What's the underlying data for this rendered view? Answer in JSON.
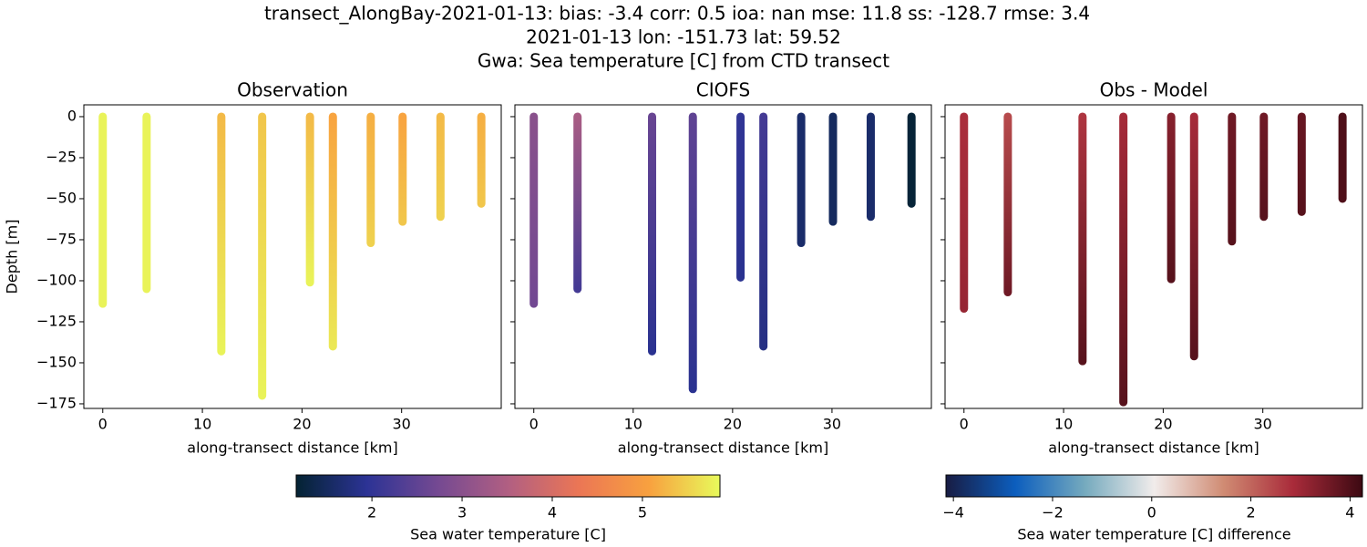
{
  "suptitle": [
    "transect_AlongBay-2021-01-13: bias: -3.4  corr: 0.5  ioa: nan  mse: 11.8  ss: -128.7  rmse: 3.4",
    "2021-01-13 lon: -151.73 lat: 59.52",
    "Gwa: Sea temperature [C] from CTD transect"
  ],
  "chart_data": [
    {
      "type": "scatter",
      "title": "Observation",
      "xlabel": "along-transect distance [km]",
      "ylabel": "Depth [m]",
      "xlim": [
        -1.9,
        40
      ],
      "ylim": [
        -177.8,
        7.2
      ],
      "xticks": [
        0,
        10,
        20,
        30
      ],
      "yticks": [
        0,
        {
          "value": -25,
          "label": "−25"
        },
        {
          "value": -50,
          "label": "−50"
        },
        {
          "value": -75,
          "label": "−75"
        },
        {
          "value": -100,
          "label": "−100"
        },
        {
          "value": -125,
          "label": "−125"
        },
        {
          "value": -150,
          "label": "−150"
        },
        {
          "value": -175,
          "label": "−175"
        }
      ],
      "show_ytick_labels": true,
      "colormap": "thermal",
      "x": [
        0,
        4.4,
        11.9,
        16,
        20.8,
        23.1,
        26.9,
        30.1,
        33.9,
        38
      ],
      "bottom_depth": [
        -114,
        -105,
        -143,
        -170,
        -101,
        -140,
        -77,
        -64,
        -61,
        -53
      ],
      "temperature_top": [
        5.8,
        5.8,
        5.3,
        5.4,
        5.3,
        5.1,
        5.2,
        5.1,
        5.3,
        5.2
      ],
      "temperature_bottom": [
        5.8,
        5.8,
        5.8,
        5.8,
        5.8,
        5.7,
        5.5,
        5.4,
        5.5,
        5.4
      ]
    },
    {
      "type": "scatter",
      "title": "CIOFS",
      "xlabel": "along-transect distance [km]",
      "xlim": [
        -1.9,
        40
      ],
      "ylim": [
        -177.8,
        7.2
      ],
      "xticks": [
        0,
        10,
        20,
        30
      ],
      "yticks": [
        0,
        -25,
        -50,
        -75,
        -100,
        -125,
        -150,
        -175
      ],
      "show_ytick_labels": false,
      "colormap": "thermal",
      "x": [
        0,
        4.4,
        11.9,
        16,
        20.8,
        23.1,
        26.9,
        30.1,
        33.9,
        38
      ],
      "bottom_depth": [
        -114,
        -105,
        -143,
        -166,
        -98,
        -140,
        -77,
        -64,
        -61,
        -53
      ],
      "temperature_top": [
        3.0,
        3.4,
        2.6,
        2.5,
        2.0,
        2.2,
        1.6,
        1.5,
        1.6,
        1.2
      ],
      "temperature_bottom": [
        2.7,
        2.2,
        1.9,
        1.9,
        1.9,
        1.8,
        1.6,
        1.5,
        1.6,
        1.2
      ]
    },
    {
      "type": "scatter",
      "title": "Obs - Model",
      "xlabel": "along-transect distance [km]",
      "xlim": [
        -1.9,
        40
      ],
      "ylim": [
        -177.8,
        7.2
      ],
      "xticks": [
        0,
        10,
        20,
        30
      ],
      "yticks": [
        0,
        -25,
        -50,
        -75,
        -100,
        -125,
        -150,
        -175
      ],
      "show_ytick_labels": false,
      "colormap": "balance",
      "x": [
        0,
        4.4,
        11.9,
        16,
        20.8,
        23.1,
        26.9,
        30.1,
        33.9,
        38
      ],
      "bottom_depth": [
        -117,
        -107,
        -149,
        -174,
        -99,
        -146,
        -76,
        -61,
        -58,
        -50
      ],
      "temperature_top": [
        2.8,
        2.4,
        2.7,
        2.9,
        3.3,
        2.9,
        3.6,
        3.6,
        3.7,
        4.0
      ],
      "temperature_bottom": [
        3.1,
        3.6,
        3.9,
        3.9,
        3.9,
        3.9,
        3.9,
        3.9,
        3.9,
        4.0
      ]
    },
    {
      "type": "colorbar",
      "xlabel": "Sea water temperature [C]",
      "colormap": "thermal",
      "xlim": [
        1.16,
        5.86
      ],
      "xticks": [
        2,
        3,
        4,
        5
      ]
    },
    {
      "type": "colorbar",
      "xlabel": "Sea water temperature [C] difference",
      "colormap": "balance",
      "xlim": [
        -4.15,
        4.25
      ],
      "xticks": [
        {
          "value": -4,
          "label": "−4"
        },
        {
          "value": -2,
          "label": "−2"
        },
        0,
        2,
        4
      ]
    }
  ]
}
